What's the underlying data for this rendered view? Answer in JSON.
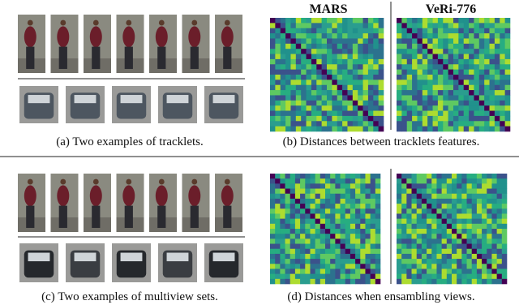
{
  "top": {
    "left_caption": "(a) Two examples of tracklets.",
    "right_caption": "(b) Distances between tracklets features.",
    "heatmap_titles": [
      "MARS",
      "VeRi-776"
    ]
  },
  "bottom": {
    "left_caption": "(c) Two examples of multiview sets.",
    "right_caption": "(d) Distances when ensambling views."
  }
}
